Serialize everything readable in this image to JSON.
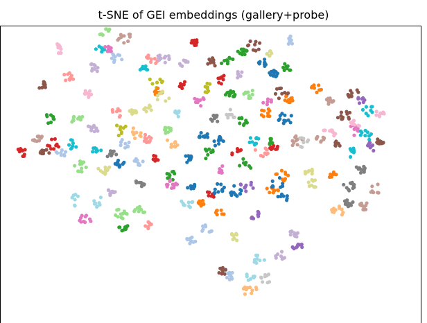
{
  "chart_data": {
    "type": "scatter",
    "title": "t-SNE of GEI embeddings (gallery+probe)",
    "xlabel": "",
    "ylabel": "",
    "axes_visible": false,
    "xlim": [
      0,
      100
    ],
    "ylim": [
      0,
      100
    ],
    "palette": "tab20",
    "colors": [
      "#1f77b4",
      "#aec7e8",
      "#ff7f0e",
      "#ffbb78",
      "#2ca02c",
      "#98df8a",
      "#d62728",
      "#ff9896",
      "#9467bd",
      "#c5b0d5",
      "#8c564b",
      "#c49c94",
      "#e377c2",
      "#f7b6d2",
      "#7f7f7f",
      "#c7c7c7",
      "#bcbd22",
      "#dbdb8d",
      "#17becf",
      "#9edae5"
    ],
    "clusters": [
      {
        "x": 2,
        "y": 58,
        "c": 6
      },
      {
        "x": 6,
        "y": 63,
        "c": 11
      },
      {
        "x": 8,
        "y": 82,
        "c": 10
      },
      {
        "x": 8,
        "y": 58,
        "c": 10
      },
      {
        "x": 9,
        "y": 70,
        "c": 4
      },
      {
        "x": 10,
        "y": 61,
        "c": 6
      },
      {
        "x": 12,
        "y": 95,
        "c": 13
      },
      {
        "x": 12,
        "y": 58,
        "c": 1
      },
      {
        "x": 14,
        "y": 85,
        "c": 7
      },
      {
        "x": 15,
        "y": 61,
        "c": 18
      },
      {
        "x": 16,
        "y": 70,
        "c": 5
      },
      {
        "x": 16,
        "y": 41,
        "c": 19
      },
      {
        "x": 17,
        "y": 53,
        "c": 5
      },
      {
        "x": 19,
        "y": 79,
        "c": 13
      },
      {
        "x": 18,
        "y": 34,
        "c": 12
      },
      {
        "x": 20,
        "y": 88,
        "c": 9
      },
      {
        "x": 20,
        "y": 66,
        "c": 9
      },
      {
        "x": 21,
        "y": 59,
        "c": 18
      },
      {
        "x": 22,
        "y": 95,
        "c": 18
      },
      {
        "x": 23,
        "y": 52,
        "c": 17
      },
      {
        "x": 22,
        "y": 40,
        "c": 19
      },
      {
        "x": 23,
        "y": 101,
        "c": 5
      },
      {
        "x": 24,
        "y": 95,
        "c": 12
      },
      {
        "x": 25,
        "y": 57,
        "c": 14
      },
      {
        "x": 25,
        "y": 44,
        "c": 9
      },
      {
        "x": 26,
        "y": 92,
        "c": 1
      },
      {
        "x": 26,
        "y": 72,
        "c": 7
      },
      {
        "x": 27,
        "y": 66,
        "c": 16
      },
      {
        "x": 27,
        "y": 54,
        "c": 0
      },
      {
        "x": 27,
        "y": 36,
        "c": 5
      },
      {
        "x": 28,
        "y": 99,
        "c": 11
      },
      {
        "x": 28,
        "y": 61,
        "c": 1
      },
      {
        "x": 28,
        "y": 31,
        "c": 4
      },
      {
        "x": 30,
        "y": 72,
        "c": 17
      },
      {
        "x": 31,
        "y": 65,
        "c": 3
      },
      {
        "x": 32,
        "y": 55,
        "c": 1
      },
      {
        "x": 32,
        "y": 47,
        "c": 14
      },
      {
        "x": 32,
        "y": 37,
        "c": 5
      },
      {
        "x": 33,
        "y": 88,
        "c": 18
      },
      {
        "x": 34,
        "y": 74,
        "c": 17
      },
      {
        "x": 34,
        "y": 63,
        "c": 7
      },
      {
        "x": 34,
        "y": 32,
        "c": 7
      },
      {
        "x": 35,
        "y": 91,
        "c": 7
      },
      {
        "x": 36,
        "y": 56,
        "c": 6
      },
      {
        "x": 36,
        "y": 83,
        "c": 16
      },
      {
        "x": 37,
        "y": 79,
        "c": 2
      },
      {
        "x": 38,
        "y": 92,
        "c": 9
      },
      {
        "x": 38,
        "y": 78,
        "c": 17
      },
      {
        "x": 39,
        "y": 66,
        "c": 5
      },
      {
        "x": 40,
        "y": 50,
        "c": 4
      },
      {
        "x": 40,
        "y": 61,
        "c": 3
      },
      {
        "x": 40,
        "y": 47,
        "c": 12
      },
      {
        "x": 42,
        "y": 72,
        "c": 19
      },
      {
        "x": 43,
        "y": 90,
        "c": 9
      },
      {
        "x": 43,
        "y": 82,
        "c": 6
      },
      {
        "x": 44,
        "y": 40,
        "c": 19
      },
      {
        "x": 44,
        "y": 56,
        "c": 0
      },
      {
        "x": 45,
        "y": 46,
        "c": 0
      },
      {
        "x": 45,
        "y": 27,
        "c": 1
      },
      {
        "x": 46,
        "y": 97,
        "c": 6
      },
      {
        "x": 47,
        "y": 76,
        "c": 12
      },
      {
        "x": 47,
        "y": 40,
        "c": 2
      },
      {
        "x": 48,
        "y": 64,
        "c": 0
      },
      {
        "x": 49,
        "y": 81,
        "c": 16
      },
      {
        "x": 49,
        "y": 58,
        "c": 4
      },
      {
        "x": 49,
        "y": 31,
        "c": 1
      },
      {
        "x": 50,
        "y": 43,
        "c": 6
      },
      {
        "x": 50,
        "y": 90,
        "c": 10
      },
      {
        "x": 51,
        "y": 70,
        "c": 14
      },
      {
        "x": 52,
        "y": 62,
        "c": 0
      },
      {
        "x": 52,
        "y": 45,
        "c": 0
      },
      {
        "x": 52,
        "y": 36,
        "c": 2
      },
      {
        "x": 53,
        "y": 84,
        "c": 6
      },
      {
        "x": 53,
        "y": 52,
        "c": 12
      },
      {
        "x": 53,
        "y": 16,
        "c": 10
      },
      {
        "x": 54,
        "y": 91,
        "c": 4
      },
      {
        "x": 55,
        "y": 72,
        "c": 15
      },
      {
        "x": 55,
        "y": 79,
        "c": 4
      },
      {
        "x": 55,
        "y": 14,
        "c": 1
      },
      {
        "x": 56,
        "y": 28,
        "c": 17
      },
      {
        "x": 56,
        "y": 44,
        "c": 0
      },
      {
        "x": 57,
        "y": 58,
        "c": 6
      },
      {
        "x": 57,
        "y": 86,
        "c": 9
      },
      {
        "x": 58,
        "y": 69,
        "c": 4
      },
      {
        "x": 58,
        "y": 94,
        "c": 4
      },
      {
        "x": 59,
        "y": 54,
        "c": 4
      },
      {
        "x": 59,
        "y": 46,
        "c": 8
      },
      {
        "x": 60,
        "y": 79,
        "c": 5
      },
      {
        "x": 60,
        "y": 14,
        "c": 19
      },
      {
        "x": 60,
        "y": 9,
        "c": 3
      },
      {
        "x": 61,
        "y": 96,
        "c": 10
      },
      {
        "x": 61,
        "y": 62,
        "c": 18
      },
      {
        "x": 61,
        "y": 36,
        "c": 8
      },
      {
        "x": 62,
        "y": 20,
        "c": 19
      },
      {
        "x": 63,
        "y": 90,
        "c": 0
      },
      {
        "x": 63,
        "y": 58,
        "c": 7
      },
      {
        "x": 64,
        "y": 77,
        "c": 12
      },
      {
        "x": 64,
        "y": 72,
        "c": 2
      },
      {
        "x": 64,
        "y": 13,
        "c": 15
      },
      {
        "x": 65,
        "y": 93,
        "c": 17
      },
      {
        "x": 65,
        "y": 62,
        "c": 4
      },
      {
        "x": 66,
        "y": 60,
        "c": 6
      },
      {
        "x": 66,
        "y": 86,
        "c": 0
      },
      {
        "x": 66,
        "y": 45,
        "c": 2
      },
      {
        "x": 67,
        "y": 47,
        "c": 0
      },
      {
        "x": 68,
        "y": 79,
        "c": 10
      },
      {
        "x": 68,
        "y": 21,
        "c": 9
      },
      {
        "x": 69,
        "y": 88,
        "c": 4
      },
      {
        "x": 69,
        "y": 70,
        "c": 0
      },
      {
        "x": 68,
        "y": 42,
        "c": 0
      },
      {
        "x": 68,
        "y": 50,
        "c": 2
      },
      {
        "x": 70,
        "y": 77,
        "c": 2
      },
      {
        "x": 70,
        "y": 98,
        "c": 1
      },
      {
        "x": 71,
        "y": 29,
        "c": 9
      },
      {
        "x": 72,
        "y": 62,
        "c": 11
      },
      {
        "x": 72,
        "y": 25,
        "c": 8
      },
      {
        "x": 73,
        "y": 62,
        "c": 15
      },
      {
        "x": 75,
        "y": 51,
        "c": 17
      },
      {
        "x": 76,
        "y": 47,
        "c": 17
      },
      {
        "x": 77,
        "y": 81,
        "c": 2
      },
      {
        "x": 78,
        "y": 63,
        "c": 11
      },
      {
        "x": 80,
        "y": 76,
        "c": 11
      },
      {
        "x": 80,
        "y": 65,
        "c": 13
      },
      {
        "x": 81,
        "y": 50,
        "c": 2
      },
      {
        "x": 82,
        "y": 61,
        "c": 10
      },
      {
        "x": 82,
        "y": 37,
        "c": 3
      },
      {
        "x": 84,
        "y": 71,
        "c": 10
      },
      {
        "x": 85,
        "y": 46,
        "c": 14
      },
      {
        "x": 85,
        "y": 40,
        "c": 14
      },
      {
        "x": 86,
        "y": 79,
        "c": 10
      },
      {
        "x": 86,
        "y": 66,
        "c": 12
      },
      {
        "x": 86,
        "y": 58,
        "c": 18
      },
      {
        "x": 87,
        "y": 69,
        "c": 13
      },
      {
        "x": 88,
        "y": 77,
        "c": 8
      },
      {
        "x": 88,
        "y": 52,
        "c": 14
      },
      {
        "x": 89,
        "y": 64,
        "c": 18
      },
      {
        "x": 89,
        "y": 39,
        "c": 11
      },
      {
        "x": 90,
        "y": 73,
        "c": 18
      },
      {
        "x": 91,
        "y": 60,
        "c": 8
      },
      {
        "x": 92,
        "y": 45,
        "c": 11
      },
      {
        "x": 93,
        "y": 72,
        "c": 13
      },
      {
        "x": 93,
        "y": 62,
        "c": 10
      }
    ]
  }
}
